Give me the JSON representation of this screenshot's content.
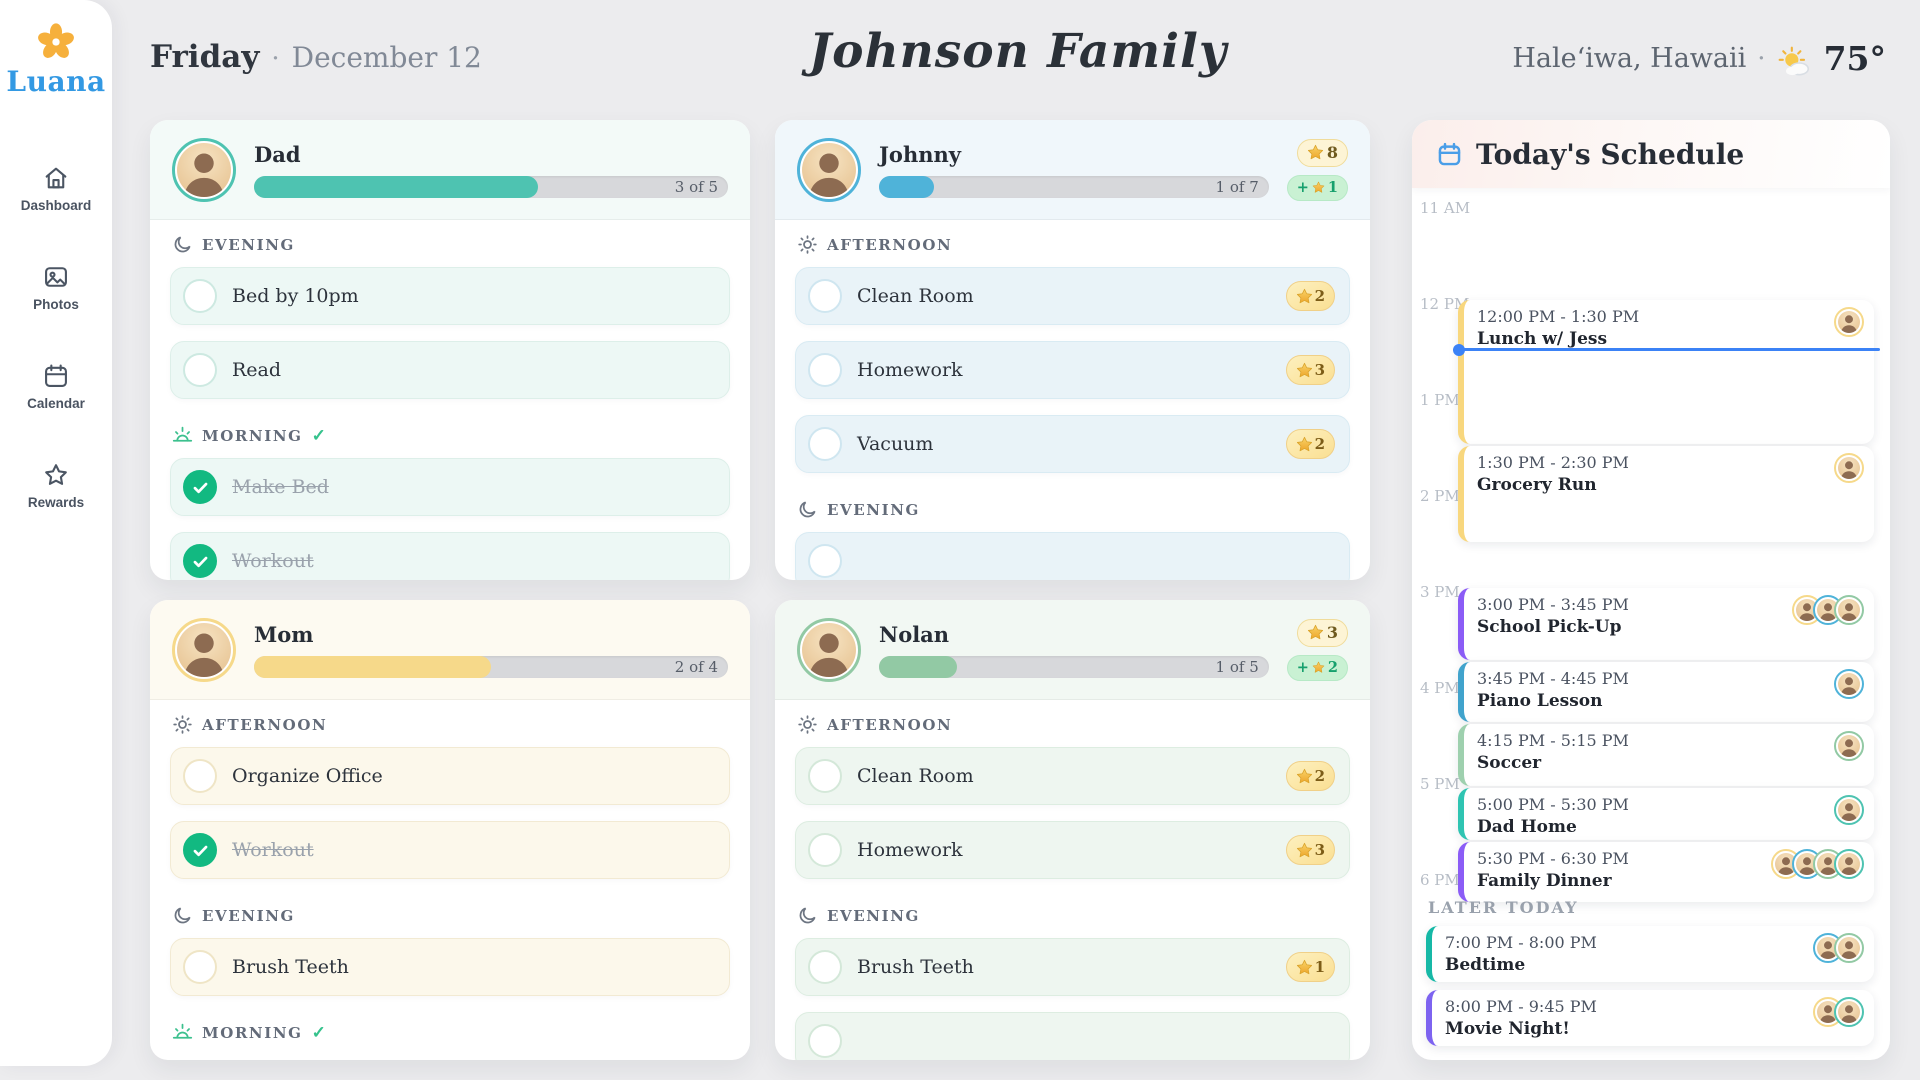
{
  "app": {
    "name": "Luana"
  },
  "sidebar": {
    "items": [
      {
        "id": "dashboard",
        "label": "Dashboard",
        "icon": "house-icon"
      },
      {
        "id": "photos",
        "label": "Photos",
        "icon": "photo-icon"
      },
      {
        "id": "calendar",
        "label": "Calendar",
        "icon": "calendar-icon"
      },
      {
        "id": "rewards",
        "label": "Rewards",
        "icon": "star-icon"
      }
    ]
  },
  "header": {
    "day": "Friday",
    "separator": "·",
    "date": "December 12",
    "family_name": "Johnson Family",
    "location": "Haleʻiwa, Hawaii",
    "weather_icon": "sun-behind-cloud",
    "temperature": "75°"
  },
  "members": [
    {
      "id": "dad",
      "name": "Dad",
      "color": "#4ec3b1",
      "header_tint": "#f3faf8",
      "row_bg": "#edf8f5",
      "row_border": "#ddefe9",
      "check_border": "#cde9e1",
      "progress": {
        "completed": 3,
        "total": 5,
        "label": "3 of 5",
        "percent": 60
      },
      "sections": [
        {
          "period": "EVENING",
          "icon": "moon",
          "complete": false,
          "tasks": [
            {
              "label": "Bed by 10pm",
              "done": false
            },
            {
              "label": "Read",
              "done": false
            }
          ]
        },
        {
          "period": "MORNING",
          "icon": "sunrise",
          "complete": true,
          "tasks": [
            {
              "label": "Make Bed",
              "done": true
            },
            {
              "label": "Workout",
              "done": true
            }
          ]
        }
      ]
    },
    {
      "id": "johnny",
      "name": "Johnny",
      "color": "#4fb3d9",
      "header_tint": "#f0f7fb",
      "row_bg": "#e9f3f8",
      "row_border": "#d9ebf3",
      "check_border": "#cfe6f0",
      "badges": {
        "stars_total": "8",
        "stars_today_prefix": "+",
        "stars_today_count": "1"
      },
      "progress": {
        "completed": 1,
        "total": 7,
        "label": "1 of 7",
        "percent": 14
      },
      "sections": [
        {
          "period": "AFTERNOON",
          "icon": "sun",
          "complete": false,
          "tasks": [
            {
              "label": "Clean Room",
              "done": false,
              "stars": 2
            },
            {
              "label": "Homework",
              "done": false,
              "stars": 3
            },
            {
              "label": "Vacuum",
              "done": false,
              "stars": 2
            }
          ]
        },
        {
          "period": "EVENING",
          "icon": "moon",
          "complete": false,
          "partial_row": true,
          "tasks": []
        }
      ]
    },
    {
      "id": "mom",
      "name": "Mom",
      "color": "#f6d98a",
      "header_tint": "#fdfaf1",
      "row_bg": "#fcf8eb",
      "row_border": "#f2ead3",
      "check_border": "#efe5c6",
      "progress": {
        "completed": 2,
        "total": 4,
        "label": "2 of 4",
        "percent": 50
      },
      "sections": [
        {
          "period": "AFTERNOON",
          "icon": "sun",
          "complete": false,
          "tasks": [
            {
              "label": "Organize Office",
              "done": false
            },
            {
              "label": "Workout",
              "done": true
            }
          ]
        },
        {
          "period": "EVENING",
          "icon": "moon",
          "complete": false,
          "tasks": [
            {
              "label": "Brush Teeth",
              "done": false
            }
          ]
        },
        {
          "period": "MORNING",
          "icon": "sunrise",
          "complete": true,
          "tasks": []
        }
      ]
    },
    {
      "id": "nolan",
      "name": "Nolan",
      "color": "#92c9a4",
      "header_tint": "#f2f8f3",
      "row_bg": "#eef6f0",
      "row_border": "#ddede1",
      "check_border": "#d4e8d9",
      "badges": {
        "stars_total": "3",
        "stars_today_prefix": "+",
        "stars_today_count": "2"
      },
      "progress": {
        "completed": 1,
        "total": 5,
        "label": "1 of 5",
        "percent": 20
      },
      "sections": [
        {
          "period": "AFTERNOON",
          "icon": "sun",
          "complete": false,
          "tasks": [
            {
              "label": "Clean Room",
              "done": false,
              "stars": 2
            },
            {
              "label": "Homework",
              "done": false,
              "stars": 3
            }
          ]
        },
        {
          "period": "EVENING",
          "icon": "moon",
          "complete": false,
          "partial_row": true,
          "tasks": [
            {
              "label": "Brush Teeth",
              "done": false,
              "stars": 1
            }
          ]
        }
      ]
    }
  ],
  "schedule": {
    "title": "Today's Schedule",
    "accent": "#3b82f6",
    "hours": [
      "11 AM",
      "12 PM",
      "1 PM",
      "2 PM",
      "3 PM",
      "4 PM",
      "5 PM",
      "6 PM"
    ],
    "events": [
      {
        "time": "12:00 PM - 1:30 PM",
        "title": "Lunch w/ Jess",
        "color": "#f8d77e",
        "participants": [
          "mom"
        ]
      },
      {
        "time": "1:30 PM - 2:30 PM",
        "title": "Grocery Run",
        "color": "#f8d77e",
        "participants": [
          "mom"
        ]
      },
      {
        "time": "3:00 PM - 3:45 PM",
        "title": "School Pick-Up",
        "color": "#8b5cf6",
        "participants": [
          "mom",
          "johnny",
          "nolan"
        ]
      },
      {
        "time": "3:45 PM - 4:45 PM",
        "title": "Piano Lesson",
        "color": "#41a3cc",
        "participants": [
          "johnny"
        ]
      },
      {
        "time": "4:15 PM - 5:15 PM",
        "title": "Soccer",
        "color": "#9ed0ae",
        "participants": [
          "nolan"
        ]
      },
      {
        "time": "5:00 PM - 5:30 PM",
        "title": "Dad Home",
        "color": "#2fc4b2",
        "participants": [
          "dad"
        ]
      },
      {
        "time": "5:30 PM - 6:30 PM",
        "title": "Family Dinner",
        "color": "#8b5cf6",
        "participants": [
          "mom",
          "johnny",
          "nolan",
          "dad"
        ]
      }
    ],
    "later": {
      "label": "LATER TODAY",
      "events": [
        {
          "time": "7:00 PM - 8:00 PM",
          "title": "Bedtime",
          "color": "#16b8a6",
          "participants": [
            "johnny",
            "nolan"
          ]
        },
        {
          "time": "8:00 PM - 9:45 PM",
          "title": "Movie Night!",
          "color": "#7d63f0",
          "participants": [
            "mom",
            "dad"
          ]
        }
      ]
    }
  }
}
